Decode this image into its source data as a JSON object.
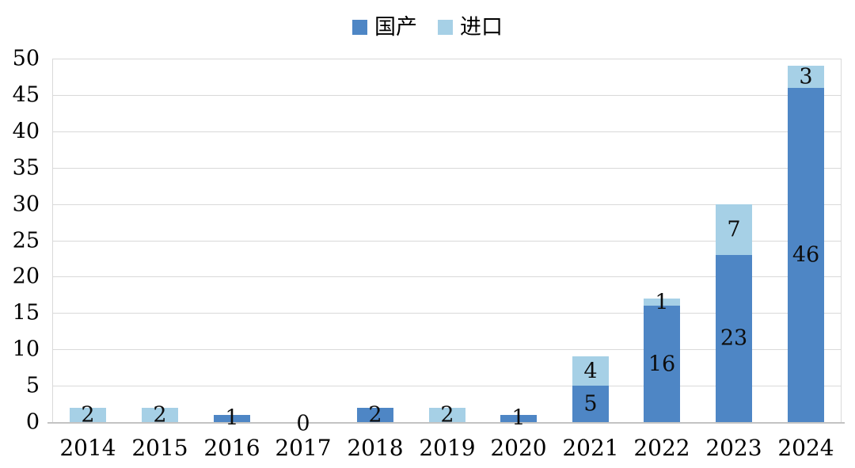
{
  "chart_data": {
    "type": "bar",
    "stacked": true,
    "title": "",
    "categories": [
      "2014",
      "2015",
      "2016",
      "2017",
      "2018",
      "2019",
      "2020",
      "2021",
      "2022",
      "2023",
      "2024"
    ],
    "series": [
      {
        "name": "国产",
        "color": "#4e86c5",
        "values": [
          0,
          0,
          1,
          0,
          2,
          0,
          1,
          5,
          16,
          23,
          46
        ]
      },
      {
        "name": "进口",
        "color": "#a6d0e6",
        "values": [
          2,
          2,
          0,
          0,
          0,
          2,
          0,
          4,
          1,
          7,
          3
        ]
      }
    ],
    "totals": [
      2,
      2,
      1,
      0,
      2,
      2,
      1,
      9,
      17,
      30,
      49
    ],
    "ylim": [
      0,
      50
    ],
    "yticks": [
      0,
      5,
      10,
      15,
      20,
      25,
      30,
      35,
      40,
      45,
      50
    ],
    "grid": "horizontal",
    "legend_position": "top-center",
    "data_label_style": "inside-center, black, zero shown for empty category",
    "colors": {
      "grid": "#d9d9d9",
      "axis_line": "#c3c3c3",
      "label_text": "#0d0d0d",
      "background": "#ffffff"
    }
  }
}
